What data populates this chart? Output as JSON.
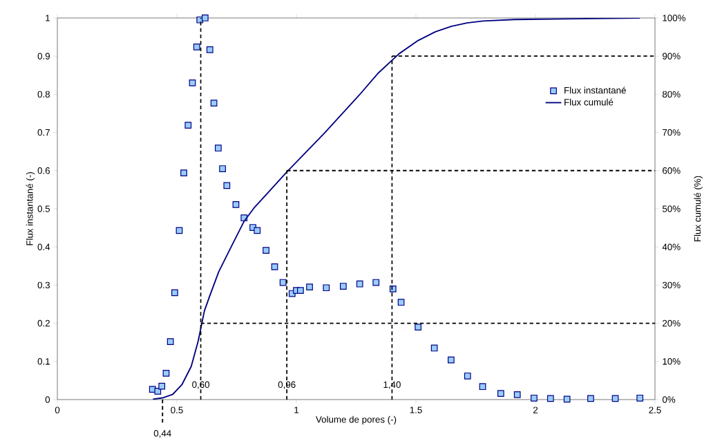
{
  "chart_data": {
    "type": "line",
    "xlabel": "Volume de pores (-)",
    "ylabel": "Flux instantané (-)",
    "y2label": "Flux cumulé (%)",
    "xlim": [
      0,
      2.5
    ],
    "ylim": [
      0,
      1
    ],
    "y2lim": [
      0,
      100
    ],
    "xticks": [
      0,
      0.5,
      1,
      1.5,
      2,
      2.5
    ],
    "yticks": [
      0,
      0.1,
      0.2,
      0.3,
      0.4,
      0.5,
      0.6,
      0.7,
      0.8,
      0.9,
      1
    ],
    "y2ticks": [
      {
        "value": 0,
        "label": "0%"
      },
      {
        "value": 10,
        "label": "10%"
      },
      {
        "value": 20,
        "label": "20%"
      },
      {
        "value": 30,
        "label": "30%"
      },
      {
        "value": 40,
        "label": "40%"
      },
      {
        "value": 50,
        "label": "50%"
      },
      {
        "value": 60,
        "label": "60%"
      },
      {
        "value": 70,
        "label": "70%"
      },
      {
        "value": 80,
        "label": "80%"
      },
      {
        "value": 90,
        "label": "90%"
      },
      {
        "value": 100,
        "label": "100%"
      }
    ],
    "legend": "top right",
    "grid": false,
    "series": [
      {
        "name": "Flux instantané",
        "type": "scatter",
        "marker": "square",
        "color": "#99ccff",
        "x": [
          0.398,
          0.42,
          0.437,
          0.455,
          0.473,
          0.491,
          0.51,
          0.529,
          0.547,
          0.565,
          0.583,
          0.596,
          0.618,
          0.638,
          0.655,
          0.673,
          0.691,
          0.709,
          0.747,
          0.781,
          0.818,
          0.836,
          0.873,
          0.909,
          0.944,
          0.982,
          1.0,
          1.017,
          1.055,
          1.125,
          1.196,
          1.265,
          1.333,
          1.404,
          1.438,
          1.509,
          1.577,
          1.647,
          1.716,
          1.779,
          1.855,
          1.924,
          1.994,
          2.063,
          2.132,
          2.231,
          2.334,
          2.437
        ],
        "values": [
          0.027,
          0.022,
          0.035,
          0.069,
          0.152,
          0.28,
          0.443,
          0.594,
          0.719,
          0.83,
          0.924,
          0.995,
          1.0,
          0.917,
          0.777,
          0.659,
          0.605,
          0.561,
          0.511,
          0.476,
          0.451,
          0.443,
          0.391,
          0.348,
          0.307,
          0.278,
          0.286,
          0.286,
          0.295,
          0.293,
          0.297,
          0.303,
          0.307,
          0.29,
          0.255,
          0.19,
          0.135,
          0.104,
          0.062,
          0.034,
          0.016,
          0.013,
          0.004,
          0.003,
          0.001,
          0.003,
          0.003,
          0.004
        ]
      },
      {
        "name": "Flux cumulé",
        "color": "#000080",
        "axis": "y2",
        "x": [
          0.4,
          0.444,
          0.483,
          0.521,
          0.56,
          0.589,
          0.615,
          0.637,
          0.675,
          0.723,
          0.781,
          0.825,
          0.878,
          0.965,
          1.117,
          1.263,
          1.343,
          1.429,
          1.509,
          1.582,
          1.648,
          1.714,
          1.781,
          1.913,
          2.18,
          2.437
        ],
        "values": [
          0.1,
          0.5,
          1.4,
          3.9,
          8.7,
          15.3,
          23.2,
          27.1,
          33.5,
          39.5,
          46.7,
          50.4,
          54,
          60,
          69.8,
          79.8,
          85.6,
          90.6,
          94.1,
          96.4,
          97.8,
          98.7,
          99.2,
          99.6,
          99.8,
          100
        ]
      },
      {
        "color": "#000000",
        "axis": "y2",
        "line_style": "dashed",
        "x": [
          0.6,
          0.6
        ],
        "values": [
          0,
          100
        ]
      },
      {
        "color": "#000000",
        "axis": "y2",
        "line_style": "dashed",
        "x": [
          0.6,
          2.5
        ],
        "values": [
          20,
          20
        ]
      },
      {
        "color": "#000000",
        "axis": "y2",
        "line_style": "dashed",
        "x": [
          0.96,
          0.96
        ],
        "values": [
          0,
          60
        ]
      },
      {
        "color": "#000000",
        "axis": "y2",
        "line_style": "dashed",
        "x": [
          0.96,
          2.5
        ],
        "values": [
          60,
          60
        ]
      },
      {
        "color": "#000000",
        "axis": "y2",
        "line_style": "dashed",
        "x": [
          1.4,
          1.4
        ],
        "values": [
          0,
          90
        ]
      },
      {
        "color": "#000000",
        "axis": "y2",
        "line_style": "dashed",
        "x": [
          1.4,
          2.5
        ],
        "values": [
          90,
          90
        ]
      }
    ],
    "annotations": [
      {
        "text": "0,60",
        "x": 0.6,
        "y": 0
      },
      {
        "text": "0,96",
        "x": 0.96,
        "y": 0
      },
      {
        "text": "1,40",
        "x": 1.4,
        "y": 0
      },
      {
        "text": "0,44",
        "x": 0.44,
        "y": 0
      }
    ]
  }
}
